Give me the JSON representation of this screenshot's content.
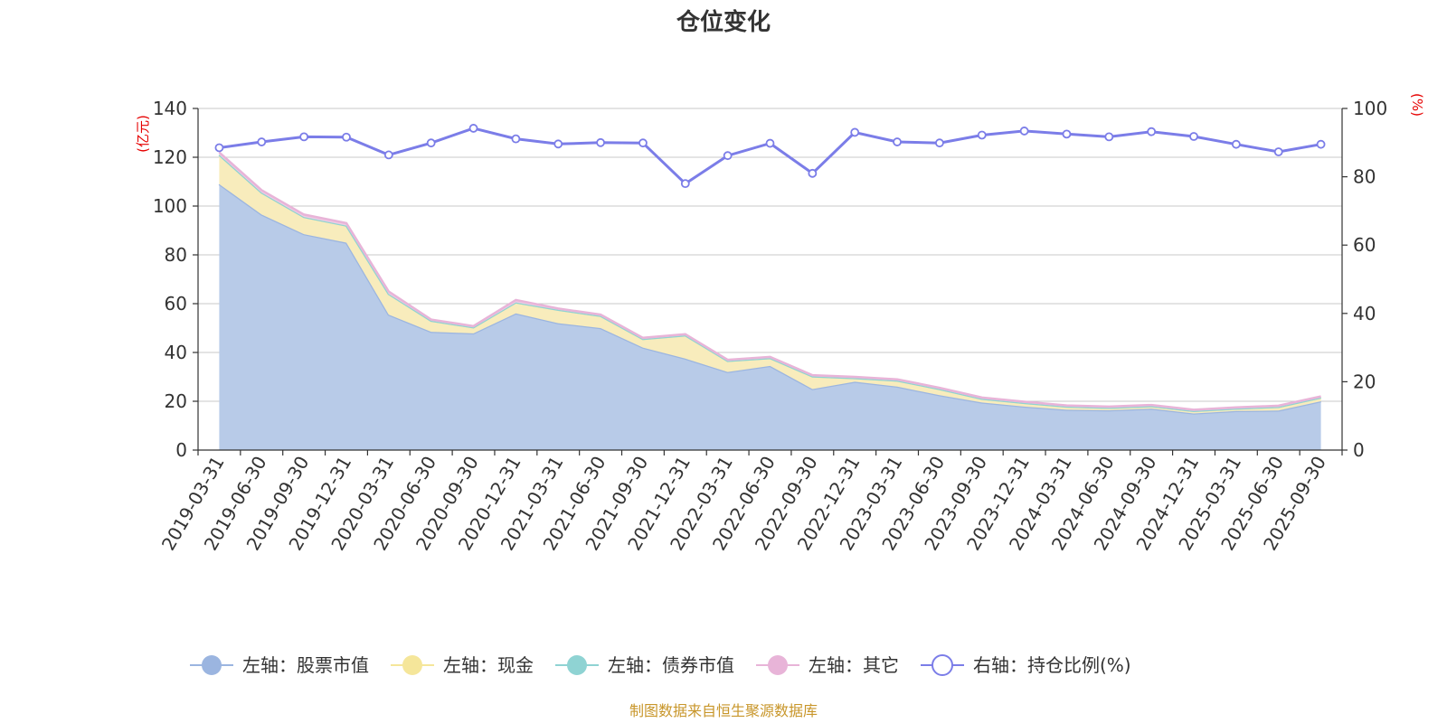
{
  "chart_data": {
    "type": "area",
    "title": "仓位变化",
    "left_unit": "(亿元)",
    "right_unit": "(%)",
    "left_ylim": [
      0,
      140
    ],
    "left_ticks": [
      0,
      20,
      40,
      60,
      80,
      100,
      120,
      140
    ],
    "right_ylim": [
      0,
      100
    ],
    "right_ticks": [
      0,
      20,
      40,
      60,
      80,
      100
    ],
    "categories": [
      "2019-03-31",
      "2019-06-30",
      "2019-09-30",
      "2019-12-31",
      "2020-03-31",
      "2020-06-30",
      "2020-09-30",
      "2020-12-31",
      "2021-03-31",
      "2021-06-30",
      "2021-09-30",
      "2021-12-31",
      "2022-03-31",
      "2022-06-30",
      "2022-09-30",
      "2022-12-31",
      "2023-03-31",
      "2023-06-30",
      "2023-09-30",
      "2023-12-31",
      "2024-03-31",
      "2024-06-30",
      "2024-09-30",
      "2024-12-31",
      "2025-03-31",
      "2025-06-30",
      "2025-09-30"
    ],
    "series": [
      {
        "name": "左轴：股票市值",
        "axis": "left",
        "color": "#9bb5e0",
        "fill": "#b8cbe8",
        "values": [
          109,
          96.5,
          88.5,
          85,
          55.5,
          48.5,
          47.8,
          56,
          52,
          50,
          42,
          37.5,
          32,
          34.5,
          25,
          28,
          26,
          22.5,
          19.5,
          17.8,
          16.5,
          16.3,
          17,
          15,
          16,
          16.2,
          20
        ]
      },
      {
        "name": "左轴：现金",
        "axis": "left",
        "color": "#f5e69a",
        "fill": "#f8ecbc",
        "values": [
          12,
          9,
          7,
          7,
          8.5,
          4.5,
          2.5,
          4.5,
          5.5,
          5,
          3.5,
          9.5,
          4.5,
          3.2,
          5.2,
          1.5,
          2.5,
          2.5,
          1.5,
          1.5,
          1.3,
          1,
          1,
          1,
          1,
          1.5,
          1.5
        ]
      },
      {
        "name": "左轴：债券市值",
        "axis": "left",
        "color": "#8fd3d3",
        "fill": "#b8e4e4",
        "values": [
          0,
          0,
          0,
          0,
          0,
          0,
          0,
          0,
          0,
          0,
          0,
          0,
          0,
          0,
          0,
          0,
          0,
          0,
          0,
          0,
          0,
          0,
          0,
          0,
          0,
          0,
          0
        ]
      },
      {
        "name": "左轴：其它",
        "axis": "left",
        "color": "#e8b4d8",
        "fill": "#f0cce4",
        "values": [
          1,
          1,
          1,
          1,
          1,
          0.5,
          0.5,
          1,
          0.5,
          0.5,
          0.5,
          0.5,
          0.5,
          0.5,
          0.5,
          0.5,
          0.5,
          0.5,
          0.5,
          0.5,
          0.5,
          0.5,
          0.5,
          0.5,
          0.5,
          0.5,
          0.5
        ]
      },
      {
        "name": "右轴：持仓比例(%)",
        "axis": "right",
        "color": "#7b7de8",
        "values": [
          88.5,
          90.2,
          91.7,
          91.6,
          86.4,
          89.9,
          94.2,
          91.1,
          89.6,
          90,
          89.9,
          78,
          86.2,
          89.8,
          81,
          93,
          90.2,
          89.9,
          92.2,
          93.4,
          92.5,
          91.7,
          93.2,
          91.8,
          89.5,
          87.3,
          89.5
        ]
      }
    ]
  },
  "source_text": "制图数据来自恒生聚源数据库"
}
